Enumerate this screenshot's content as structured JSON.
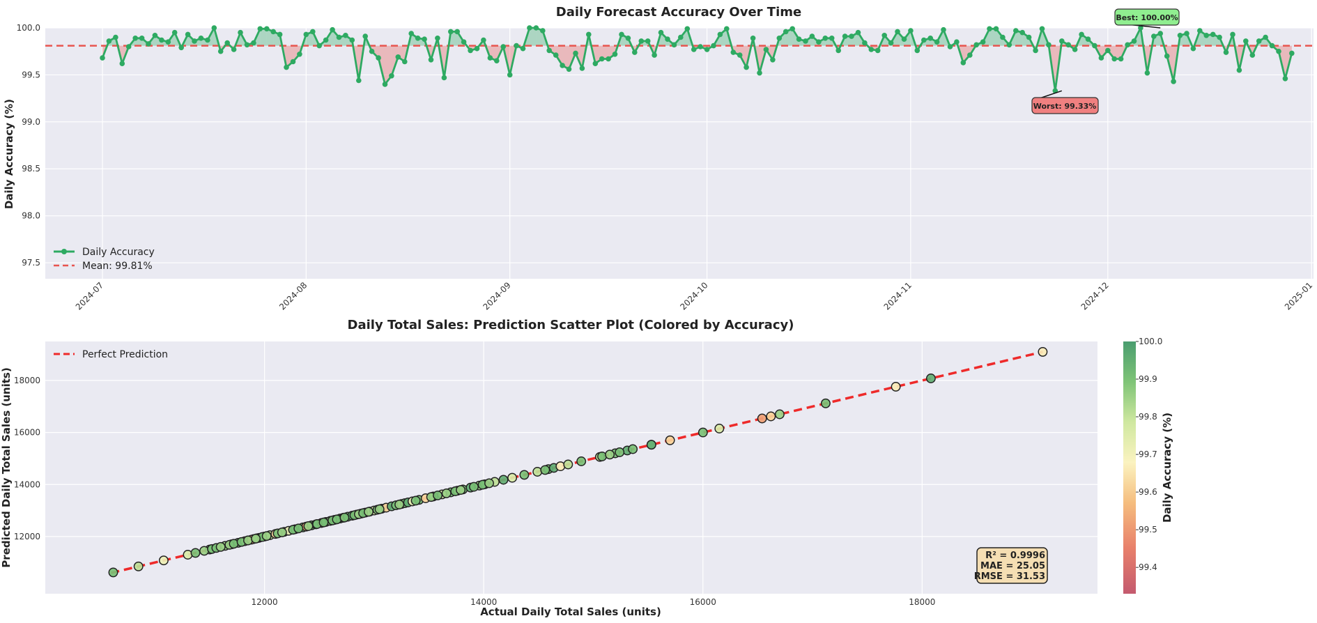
{
  "chart_data": [
    {
      "type": "line",
      "title": "Daily Forecast Accuracy Over Time",
      "xlabel": "",
      "ylabel": "Daily Accuracy (%)",
      "ylim": [
        97.33,
        100.0
      ],
      "yticks": [
        "97.5",
        "98.0",
        "98.5",
        "99.0",
        "99.5",
        "100.0"
      ],
      "xticks": [
        "2024-07",
        "2024-08",
        "2024-09",
        "2024-10",
        "2024-11",
        "2024-12",
        "2025-01"
      ],
      "x_start": "2024-07-01",
      "x_end": "2024-12-30",
      "grid": true,
      "legend_position": "lower-left",
      "series": [
        {
          "name": "Daily Accuracy",
          "color": "#2eaa62",
          "values": [
            99.68,
            99.86,
            99.9,
            99.62,
            99.8,
            99.89,
            99.89,
            99.83,
            99.92,
            99.87,
            99.85,
            99.95,
            99.79,
            99.93,
            99.86,
            99.89,
            99.87,
            100.0,
            99.75,
            99.84,
            99.77,
            99.95,
            99.82,
            99.84,
            99.99,
            99.99,
            99.96,
            99.93,
            99.58,
            99.64,
            99.72,
            99.93,
            99.96,
            99.81,
            99.87,
            99.98,
            99.9,
            99.92,
            99.87,
            99.44,
            99.91,
            99.75,
            99.68,
            99.4,
            99.49,
            99.69,
            99.64,
            99.94,
            99.89,
            99.88,
            99.66,
            99.89,
            99.47,
            99.96,
            99.96,
            99.85,
            99.76,
            99.78,
            99.87,
            99.68,
            99.65,
            99.8,
            99.5,
            99.81,
            99.78,
            100.0,
            100.0,
            99.97,
            99.76,
            99.71,
            99.6,
            99.56,
            99.73,
            99.57,
            99.93,
            99.62,
            99.67,
            99.67,
            99.72,
            99.93,
            99.89,
            99.74,
            99.86,
            99.86,
            99.71,
            99.95,
            99.88,
            99.82,
            99.9,
            99.99,
            99.77,
            99.8,
            99.77,
            99.81,
            99.93,
            99.99,
            99.74,
            99.71,
            99.58,
            99.89,
            99.52,
            99.77,
            99.66,
            99.89,
            99.96,
            99.99,
            99.88,
            99.86,
            99.91,
            99.85,
            99.89,
            99.89,
            99.76,
            99.91,
            99.91,
            99.95,
            99.84,
            99.77,
            99.76,
            99.92,
            99.84,
            99.96,
            99.88,
            99.97,
            99.76,
            99.87,
            99.89,
            99.85,
            99.98,
            99.8,
            99.85,
            99.63,
            99.71,
            99.82,
            99.85,
            99.99,
            99.99,
            99.9,
            99.82,
            99.97,
            99.95,
            99.9,
            99.76,
            99.99,
            99.82,
            99.33,
            99.86,
            99.82,
            99.77,
            99.93,
            99.88,
            99.81,
            99.68,
            99.76,
            99.67,
            99.67,
            99.82,
            99.86,
            100.0,
            99.52,
            99.91,
            99.94,
            99.7,
            99.43,
            99.92,
            99.94,
            99.78,
            99.97,
            99.92,
            99.93,
            99.9,
            99.74,
            99.93,
            99.55,
            99.86,
            99.71,
            99.86,
            99.9,
            99.81,
            99.75,
            99.46,
            99.73
          ]
        }
      ],
      "mean_line": {
        "name": "Mean: 99.81%",
        "value": 99.81,
        "color": "#e8554f"
      },
      "annotations": [
        {
          "text": "Best: 100.00%",
          "date": "2024-12-09",
          "value": 100.0
        },
        {
          "text": "Worst: 99.33%",
          "date": "2024-11-24",
          "value": 99.33
        }
      ]
    },
    {
      "type": "scatter",
      "title": "Daily Total Sales: Prediction Scatter Plot (Colored by Accuracy)",
      "xlabel": "Actual Daily Total Sales (units)",
      "ylabel": "Predicted Daily Total Sales (units)",
      "xlim": [
        10000,
        19600
      ],
      "ylim": [
        9800,
        19500
      ],
      "xticks": [
        12000,
        14000,
        16000,
        18000
      ],
      "yticks": [
        12000,
        14000,
        16000,
        18000
      ],
      "grid": true,
      "legend_position": "top-left",
      "reference_line": {
        "name": "Perfect Prediction",
        "from": [
          10600,
          10600
        ],
        "to": [
          19100,
          19100
        ],
        "color": "#ee2a2a"
      },
      "colorbar": {
        "label": "Daily Accuracy (%)",
        "min": 99.33,
        "max": 100.0,
        "ticks": [
          "99.4",
          "99.5",
          "99.6",
          "99.7",
          "99.8",
          "99.9",
          "100.0"
        ],
        "colors": [
          "#c45a6e",
          "#e8806b",
          "#f5bd7e",
          "#fbf3c0",
          "#cfe8a0",
          "#7fc477",
          "#4a9d6f"
        ]
      },
      "stats_box": {
        "lines": [
          "R² = 0.9996",
          "MAE = 25.05",
          "RMSE = 31.53"
        ]
      },
      "points": [
        [
          10620,
          99.9
        ],
        [
          10850,
          99.8
        ],
        [
          11080,
          99.7
        ],
        [
          11300,
          99.75
        ],
        [
          11500,
          99.85
        ],
        [
          11640,
          99.85
        ],
        [
          11700,
          99.65
        ],
        [
          11760,
          99.9
        ],
        [
          11820,
          99.75
        ],
        [
          11900,
          99.75
        ],
        [
          11950,
          99.85
        ],
        [
          12000,
          99.9
        ],
        [
          12050,
          99.8
        ],
        [
          12100,
          99.6
        ],
        [
          11850,
          99.9
        ],
        [
          11880,
          99.5
        ],
        [
          11930,
          99.9
        ],
        [
          11980,
          99.9
        ],
        [
          12180,
          99.95
        ],
        [
          12220,
          99.7
        ],
        [
          12280,
          99.9
        ],
        [
          12350,
          99.9
        ],
        [
          12380,
          99.5
        ],
        [
          12430,
          99.9
        ],
        [
          12470,
          99.95
        ],
        [
          12520,
          99.4
        ],
        [
          12560,
          99.95
        ],
        [
          12600,
          99.85
        ],
        [
          12640,
          99.85
        ],
        [
          12690,
          99.95
        ],
        [
          12720,
          99.45
        ],
        [
          12760,
          99.9
        ],
        [
          12800,
          99.95
        ],
        [
          12840,
          99.6
        ],
        [
          12880,
          99.9
        ],
        [
          12920,
          99.95
        ],
        [
          12960,
          99.8
        ],
        [
          13000,
          99.75
        ],
        [
          13030,
          99.9
        ],
        [
          13070,
          99.95
        ],
        [
          13110,
          99.6
        ],
        [
          13160,
          99.95
        ],
        [
          13200,
          99.9
        ],
        [
          13250,
          99.8
        ],
        [
          13280,
          99.9
        ],
        [
          13310,
          99.95
        ],
        [
          13350,
          99.7
        ],
        [
          13410,
          99.9
        ],
        [
          13470,
          99.6
        ],
        [
          13540,
          99.9
        ],
        [
          13620,
          99.75
        ],
        [
          13700,
          99.9
        ],
        [
          13760,
          99.7
        ],
        [
          13810,
          99.9
        ],
        [
          13880,
          99.95
        ],
        [
          13960,
          99.85
        ],
        [
          14010,
          99.9
        ],
        [
          14100,
          99.8
        ],
        [
          14180,
          99.95
        ],
        [
          14260,
          99.75
        ],
        [
          14370,
          99.9
        ],
        [
          14490,
          99.8
        ],
        [
          14590,
          99.9
        ],
        [
          14640,
          99.95
        ],
        [
          14700,
          99.65
        ],
        [
          14770,
          99.8
        ],
        [
          14890,
          99.9
        ],
        [
          15060,
          99.8
        ],
        [
          15200,
          99.9
        ],
        [
          15310,
          99.95
        ],
        [
          15530,
          99.85
        ],
        [
          15700,
          99.6
        ],
        [
          16000,
          99.9
        ],
        [
          16150,
          99.75
        ],
        [
          16540,
          99.5
        ],
        [
          16620,
          99.6
        ],
        [
          16700,
          99.85
        ],
        [
          17120,
          99.9
        ],
        [
          17760,
          99.65
        ],
        [
          18080,
          99.95
        ],
        [
          19100,
          99.65
        ],
        [
          11370,
          99.9
        ],
        [
          11450,
          99.85
        ],
        [
          11520,
          99.9
        ],
        [
          11560,
          99.9
        ],
        [
          11600,
          99.85
        ],
        [
          11680,
          99.85
        ],
        [
          11720,
          99.9
        ],
        [
          11790,
          99.9
        ],
        [
          11850,
          99.85
        ],
        [
          11920,
          99.85
        ],
        [
          12020,
          99.85
        ],
        [
          12120,
          99.9
        ],
        [
          12160,
          99.85
        ],
        [
          12260,
          99.9
        ],
        [
          12310,
          99.9
        ],
        [
          12400,
          99.85
        ],
        [
          12480,
          99.9
        ],
        [
          12540,
          99.9
        ],
        [
          12620,
          99.9
        ],
        [
          12660,
          99.9
        ],
        [
          12730,
          99.9
        ],
        [
          12820,
          99.9
        ],
        [
          12860,
          99.85
        ],
        [
          12900,
          99.9
        ],
        [
          12950,
          99.85
        ],
        [
          13050,
          99.85
        ],
        [
          13230,
          99.85
        ],
        [
          13380,
          99.9
        ],
        [
          13520,
          99.85
        ],
        [
          13580,
          99.9
        ],
        [
          13660,
          99.85
        ],
        [
          13740,
          99.9
        ],
        [
          13790,
          99.85
        ],
        [
          13910,
          99.9
        ],
        [
          13990,
          99.9
        ],
        [
          14050,
          99.85
        ],
        [
          14560,
          99.9
        ],
        [
          15080,
          99.9
        ],
        [
          15150,
          99.85
        ],
        [
          15240,
          99.9
        ],
        [
          15360,
          99.9
        ],
        [
          15530,
          99.95
        ]
      ]
    }
  ]
}
